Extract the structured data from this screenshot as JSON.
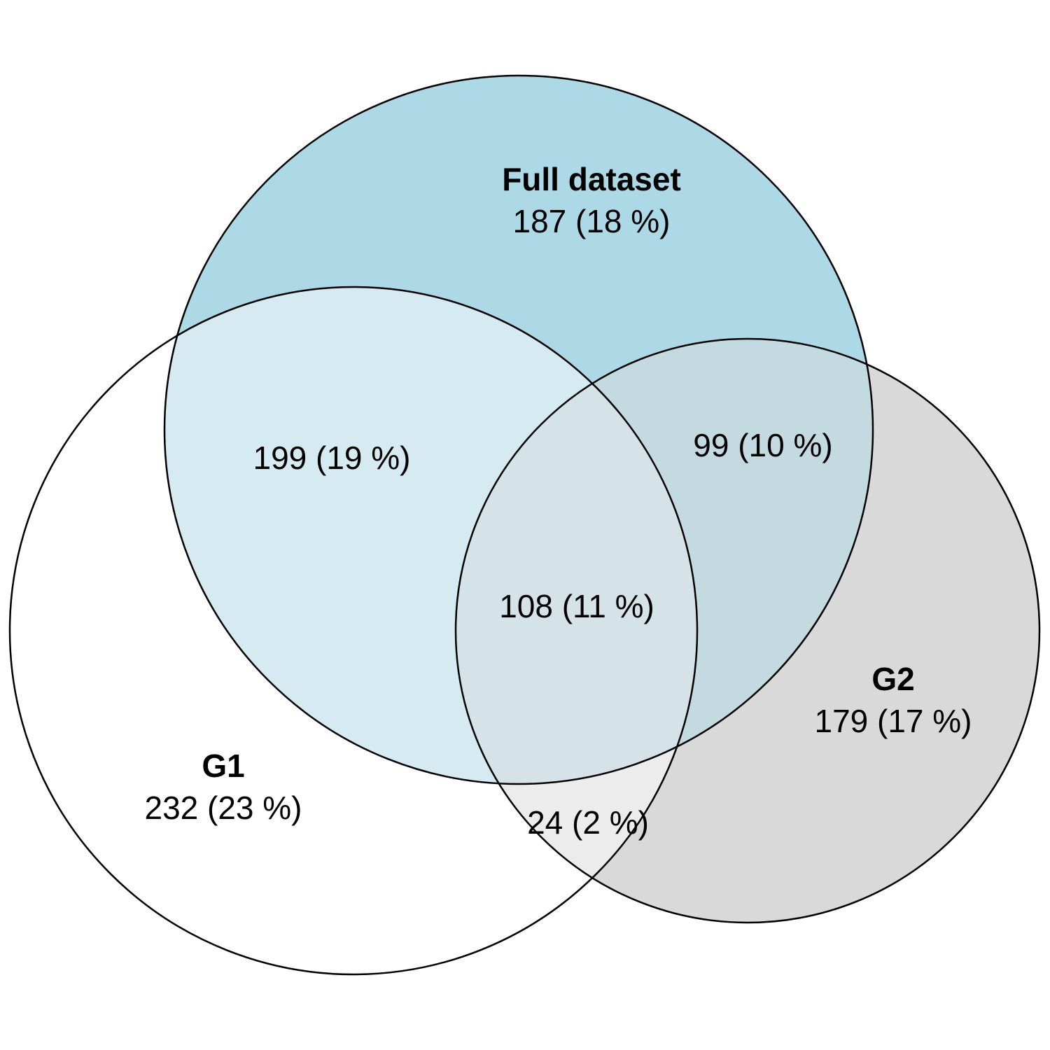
{
  "sets": {
    "full": {
      "name": "Full dataset",
      "only": "187 (18 %)",
      "fill": "#add8e6"
    },
    "g1": {
      "name": "G1",
      "only": "232 (23 %)",
      "fill": "#ffffff"
    },
    "g2": {
      "name": "G2",
      "only": "179 (17 %)",
      "fill": "#d9d9d9"
    }
  },
  "overlaps": {
    "full_g1": {
      "label": "199 (19 %)",
      "fill": "#d6eaf1"
    },
    "full_g2": {
      "label": "99 (10 %)",
      "fill": "#c4dae1"
    },
    "g1_g2": {
      "label": "24 (2 %)",
      "fill": "#ececec"
    },
    "all": {
      "label": "108 (11 %)",
      "fill": "#d5e3e9"
    }
  }
}
